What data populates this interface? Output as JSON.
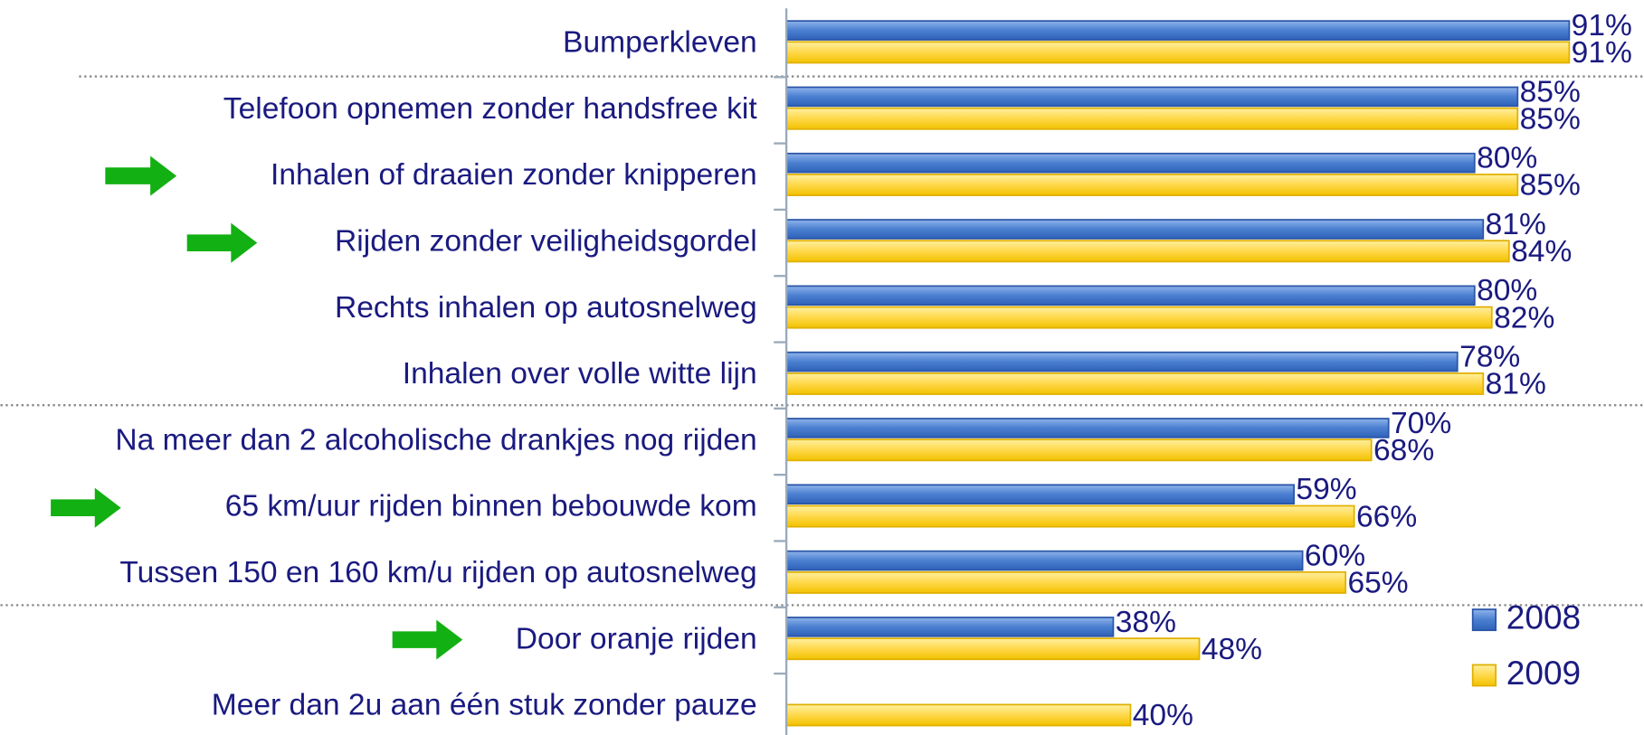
{
  "chart_data": {
    "type": "bar",
    "orientation": "horizontal",
    "categories": [
      "Bumperkleven",
      "Telefoon opnemen zonder handsfree kit",
      "Inhalen of draaien zonder knipperen",
      "Rijden zonder veiligheidsgordel",
      "Rechts inhalen op autosnelweg",
      "Inhalen over volle witte lijn",
      "Na meer dan 2 alcoholische drankjes nog rijden",
      "65 km/uur rijden binnen bebouwde kom",
      "Tussen 150 en 160 km/u rijden op autosnelweg",
      "Door oranje rijden",
      "Meer dan 2u aan één stuk zonder pauze"
    ],
    "series": [
      {
        "name": "2008",
        "color": "#4a7fd0",
        "values": [
          91,
          85,
          80,
          81,
          80,
          78,
          70,
          59,
          60,
          38,
          null
        ],
        "value_labels": [
          "91%",
          "85%",
          "80%",
          "81%",
          "80%",
          "78%",
          "70%",
          "59%",
          "60%",
          "38%",
          null
        ]
      },
      {
        "name": "2009",
        "color": "#ffd84a",
        "values": [
          91,
          85,
          85,
          84,
          82,
          81,
          68,
          66,
          65,
          48,
          40
        ],
        "value_labels": [
          "91%",
          "85%",
          "85%",
          "84%",
          "82%",
          "81%",
          "68%",
          "66%",
          "65%",
          "48%",
          "40%"
        ]
      }
    ],
    "xlim": [
      0,
      100
    ],
    "legend": "lower right"
  }
}
